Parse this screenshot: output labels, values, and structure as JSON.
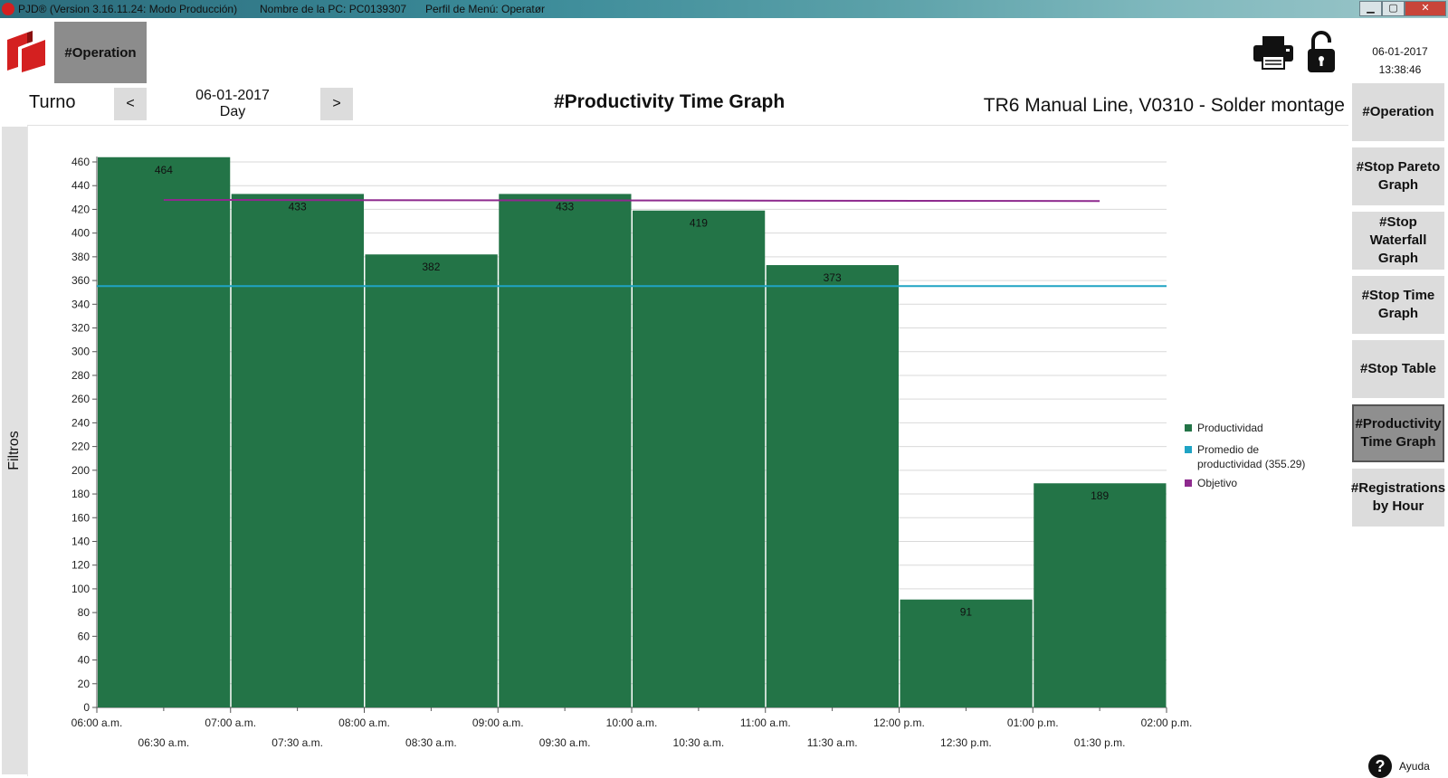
{
  "window": {
    "title_app": "PJD® (Version 3.16.11.24: Modo Producción)",
    "title_pc": "Nombre de la PC: PC0139307",
    "title_profile": "Perfil de Menú: Operatør",
    "min_icon": "minimize-icon",
    "max_icon": "maximize-icon",
    "close_icon": "close-icon"
  },
  "header": {
    "operation_tab": "#Operation",
    "date": "06-01-2017",
    "time": "13:38:46"
  },
  "toolbar": {
    "turno_label": "Turno",
    "prev_label": "<",
    "next_label": ">",
    "date": "06-01-2017",
    "period": "Day",
    "page_title": "#Productivity Time Graph",
    "line_name": "TR6 Manual Line, V0310 - Solder montage"
  },
  "filters": {
    "label": "Filtros"
  },
  "rightnav": {
    "items": [
      {
        "label": "#Operation",
        "active": false
      },
      {
        "label": "#Stop Pareto Graph",
        "active": false
      },
      {
        "label": "#Stop Waterfall Graph",
        "active": false
      },
      {
        "label": "#Stop Time Graph",
        "active": false
      },
      {
        "label": "#Stop Table",
        "active": false
      },
      {
        "label": "#Productivity Time Graph",
        "active": true
      },
      {
        "label": "#Registrations by Hour",
        "active": false
      }
    ]
  },
  "help": {
    "label": "Ayuda"
  },
  "colors": {
    "bar": "#237447",
    "average": "#1fa3c4",
    "objective": "#8e2a8e",
    "grid": "#d9d9d9"
  },
  "chart_data": {
    "type": "bar",
    "ylim": [
      0,
      460
    ],
    "ytick_step": 20,
    "x_major_ticks": [
      "06:00 a.m.",
      "07:00 a.m.",
      "08:00 a.m.",
      "09:00 a.m.",
      "10:00 a.m.",
      "11:00 a.m.",
      "12:00 p.m.",
      "01:00 p.m.",
      "02:00 p.m."
    ],
    "x_minor_ticks": [
      "06:30 a.m.",
      "07:30 a.m.",
      "08:30 a.m.",
      "09:30 a.m.",
      "10:30 a.m.",
      "11:30 a.m.",
      "12:30 p.m.",
      "01:30 p.m."
    ],
    "bars": [
      {
        "start": "06:00 a.m.",
        "end": "07:00 a.m.",
        "value": 464
      },
      {
        "start": "07:00 a.m.",
        "end": "08:00 a.m.",
        "value": 433
      },
      {
        "start": "08:00 a.m.",
        "end": "09:00 a.m.",
        "value": 382
      },
      {
        "start": "09:00 a.m.",
        "end": "10:00 a.m.",
        "value": 433
      },
      {
        "start": "10:00 a.m.",
        "end": "11:00 a.m.",
        "value": 419
      },
      {
        "start": "11:00 a.m.",
        "end": "12:00 p.m.",
        "value": 373
      },
      {
        "start": "12:00 p.m.",
        "end": "01:00 p.m.",
        "value": 0
      },
      {
        "start": "12:00 p.m.",
        "end": "01:00 p.m.",
        "value": 91
      },
      {
        "start": "01:00 p.m.",
        "end": "02:00 p.m.",
        "value": 189
      }
    ],
    "average": 355.29,
    "objective": {
      "from": "06:30 a.m.",
      "to": "01:30 p.m.",
      "start_value": 428,
      "end_value": 427
    },
    "legend": [
      {
        "label": "Productividad",
        "color": "#237447"
      },
      {
        "label": "Promedio de productividad (355.29)",
        "color": "#1fa3c4"
      },
      {
        "label": "Objetivo",
        "color": "#8e2a8e"
      }
    ],
    "legend_position": "right",
    "grid": true
  }
}
